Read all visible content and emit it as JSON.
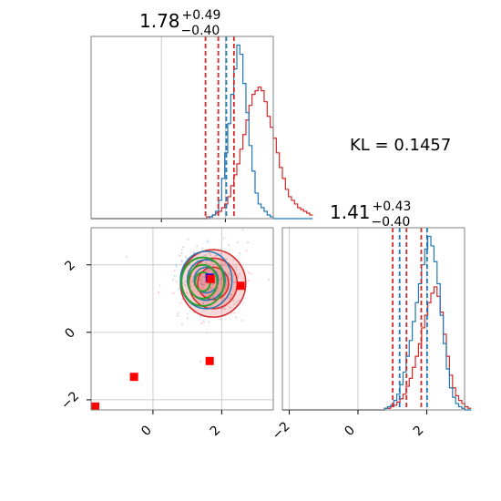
{
  "colors": {
    "red": "#d62728",
    "blue": "#1f77b4",
    "green": "#2ca02c",
    "marker_red": "#ff0000",
    "marker_blue": "#0000ff",
    "grid": "#cccccc",
    "axes": "#808080"
  },
  "chart_data": {
    "type": "corner",
    "annotation": "KL = 0.1457",
    "panels": [
      {
        "id": "hist-x",
        "type": "step-histogram",
        "title": {
          "value": "1.78",
          "sup": "+0.49",
          "sub": "−0.40"
        },
        "xlim": [
          -2.2,
          3.5
        ],
        "grid_x": [
          0,
          2
        ],
        "quantiles": {
          "red": [
            1.38,
            1.78,
            2.27
          ],
          "blue": [
            2.03
          ]
        },
        "bins_start": -2.2,
        "bin_width": 0.095,
        "series": [
          {
            "color": "red",
            "values": [
              0,
              0,
              0,
              0,
              0,
              0,
              0,
              0,
              0,
              0,
              0,
              0,
              0,
              0,
              0,
              0,
              0,
              0,
              0,
              0,
              0,
              0,
              0,
              0,
              0,
              0,
              0,
              0,
              0,
              0,
              0,
              0,
              0,
              0,
              0,
              0,
              0,
              0,
              1,
              1,
              2,
              3,
              4,
              6,
              8,
              12,
              18,
              24,
              30,
              38,
              46,
              54,
              62,
              68,
              70,
              72,
              70,
              64,
              56,
              50,
              44,
              36,
              28,
              22,
              16,
              12,
              10,
              8,
              6,
              5,
              4,
              3,
              2
            ]
          },
          {
            "color": "blue",
            "values": [
              0,
              0,
              0,
              0,
              0,
              0,
              0,
              0,
              0,
              0,
              0,
              0,
              0,
              0,
              0,
              0,
              0,
              0,
              0,
              0,
              0,
              0,
              0,
              0,
              0,
              0,
              0,
              0,
              0,
              0,
              0,
              0,
              0,
              0,
              0,
              0,
              0,
              0,
              0,
              1,
              2,
              4,
              10,
              22,
              36,
              52,
              68,
              82,
              95,
              90,
              74,
              58,
              40,
              26,
              14,
              8,
              6,
              4,
              2,
              1,
              0,
              0,
              0,
              0,
              0,
              0,
              0,
              0,
              0,
              0,
              0,
              0,
              0
            ]
          }
        ]
      },
      {
        "id": "hist-y",
        "type": "step-histogram",
        "title": {
          "value": "1.41",
          "sup": "+0.43",
          "sub": "−0.40"
        },
        "xlim": [
          -2.2,
          3.1
        ],
        "grid_x": [
          -2,
          0,
          2
        ],
        "xticks": [
          "−2",
          "0",
          "2"
        ],
        "quantiles": {
          "red": [
            1.01,
            1.41,
            1.84
          ],
          "blue": [
            1.21,
            2.01
          ]
        },
        "bins_start": -2.2,
        "bin_width": 0.09,
        "series": [
          {
            "color": "red",
            "values": [
              0,
              0,
              0,
              0,
              0,
              0,
              0,
              0,
              0,
              0,
              0,
              0,
              0,
              0,
              0,
              0,
              0,
              0,
              0,
              0,
              0,
              0,
              0,
              0,
              0,
              0,
              0,
              0,
              0,
              0,
              0,
              0,
              0,
              1,
              1,
              2,
              3,
              5,
              7,
              10,
              15,
              20,
              27,
              34,
              42,
              52,
              60,
              68,
              74,
              78,
              72,
              62,
              48,
              34,
              22,
              14,
              9,
              6,
              4,
              2,
              1
            ]
          },
          {
            "color": "blue",
            "values": [
              0,
              0,
              0,
              0,
              0,
              0,
              0,
              0,
              0,
              0,
              0,
              0,
              0,
              0,
              0,
              0,
              0,
              0,
              0,
              0,
              0,
              0,
              0,
              0,
              0,
              0,
              0,
              0,
              0,
              0,
              0,
              0,
              0,
              1,
              2,
              3,
              6,
              10,
              16,
              24,
              34,
              44,
              56,
              68,
              80,
              92,
              102,
              110,
              104,
              94,
              80,
              60,
              42,
              26,
              14,
              8,
              4,
              2,
              1,
              0,
              0
            ]
          }
        ]
      },
      {
        "id": "scatter-2d",
        "type": "contour-scatter",
        "xlim": [
          -1.8,
          3.5
        ],
        "ylim": [
          -2.3,
          3.1
        ],
        "grid_x": [
          0,
          2
        ],
        "grid_y": [
          -2,
          0,
          2
        ],
        "xticks": [
          "0",
          "2"
        ],
        "yticks": [
          "−2",
          "0",
          "2"
        ],
        "markers": [
          {
            "x": 1.65,
            "y": 1.62,
            "color": "marker_blue"
          },
          {
            "x": 1.68,
            "y": 1.58,
            "color": "marker_red"
          },
          {
            "x": 2.55,
            "y": 1.38,
            "color": "marker_red"
          },
          {
            "x": 1.65,
            "y": -0.85,
            "color": "marker_red"
          },
          {
            "x": -0.55,
            "y": -1.32,
            "color": "marker_red"
          },
          {
            "x": -1.68,
            "y": -2.2,
            "color": "marker_red"
          }
        ],
        "contours": [
          {
            "color": "red",
            "cx": 1.75,
            "cy": 1.45,
            "rx": [
              0.95,
              0.7,
              0.45
            ],
            "ry": [
              1.0,
              0.75,
              0.48
            ]
          },
          {
            "color": "blue",
            "cx": 1.55,
            "cy": 1.55,
            "rx": [
              0.75,
              0.55,
              0.35
            ],
            "ry": [
              0.85,
              0.6,
              0.38
            ]
          },
          {
            "color": "green",
            "cx": 1.45,
            "cy": 1.5,
            "rx": [
              0.62,
              0.42,
              0.22
            ],
            "ry": [
              0.72,
              0.5,
              0.28
            ]
          }
        ]
      }
    ]
  }
}
